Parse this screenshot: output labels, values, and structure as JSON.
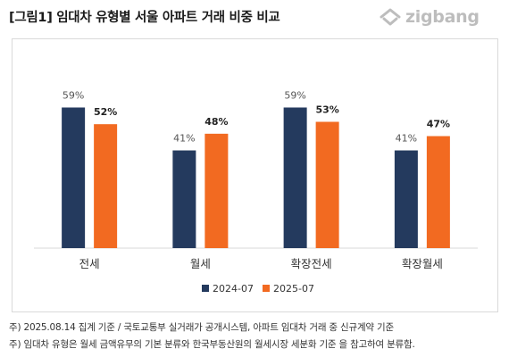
{
  "header": {
    "title": "[그림1] 임대차 유형별 서울 아파트 거래 비중 비교",
    "logo_text": "zigbang",
    "logo_icon": "zigbang-house-icon"
  },
  "chart_data": {
    "type": "bar",
    "title": "[그림1] 임대차 유형별 서울 아파트 거래 비중 비교",
    "categories": [
      "전세",
      "월세",
      "확장전세",
      "확장월세"
    ],
    "series": [
      {
        "name": "2024-07",
        "values": [
          59,
          41,
          59,
          41
        ],
        "labels": [
          "59%",
          "41%",
          "59%",
          "41%"
        ],
        "color": "#243a5e"
      },
      {
        "name": "2025-07",
        "values": [
          52,
          48,
          53,
          47
        ],
        "labels": [
          "52%",
          "48%",
          "53%",
          "47%"
        ],
        "color": "#f26a21"
      }
    ],
    "ylim": [
      0,
      70
    ],
    "grid": false,
    "legend_position": "bottom",
    "unit": "%"
  },
  "footnotes": [
    "주) 2025.08.14 집계 기준 / 국토교통부 실거래가 공개시스템, 아파트 임대차 거래 중 신규계약 기준",
    "주) 임대차 유형은 월세 금액유무의 기본 분류와 한국부동산원의 월세시장 세분화 기준 을 참고하여 분류함."
  ]
}
